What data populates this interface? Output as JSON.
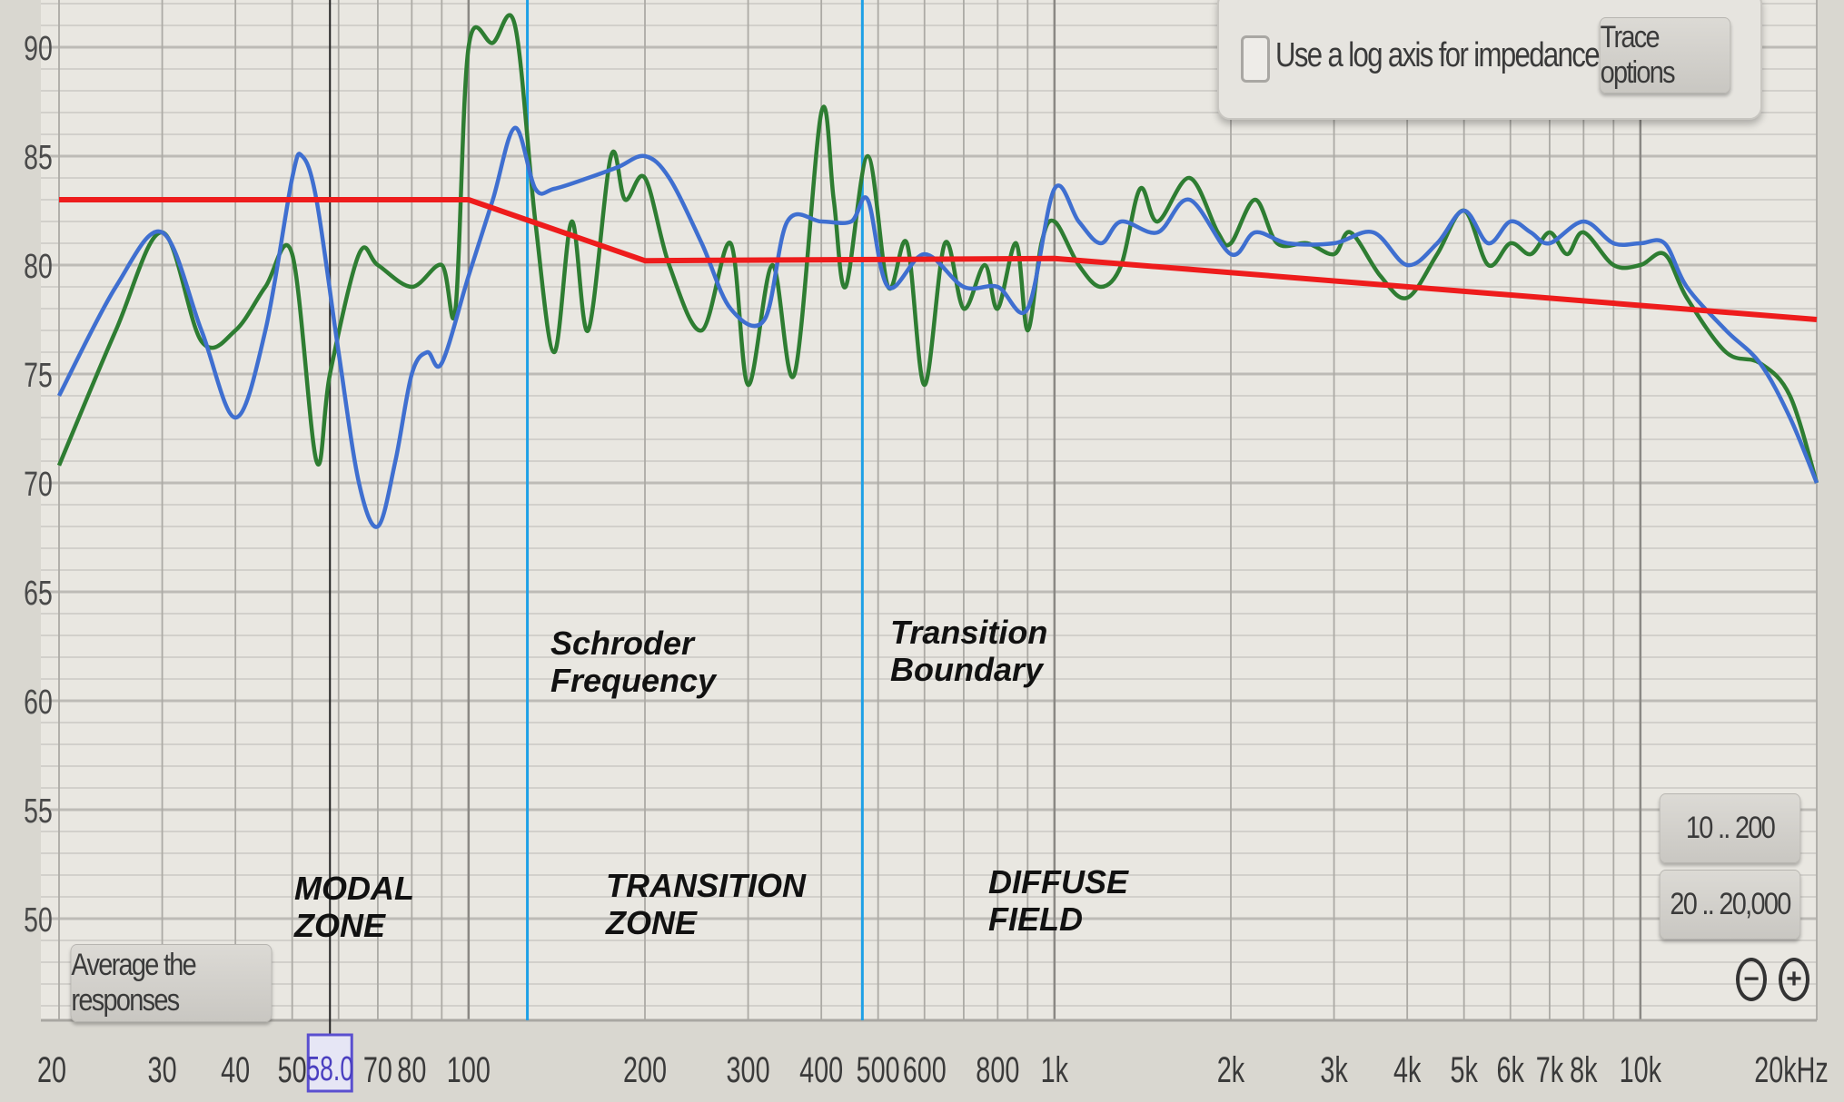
{
  "chart_data": {
    "type": "line",
    "x_scale": "log",
    "xlim": [
      20,
      20000
    ],
    "ylim": [
      45.5,
      92
    ],
    "grid": true,
    "y_ticks": [
      50,
      55,
      60,
      65,
      70,
      75,
      80,
      85,
      90
    ],
    "x_ticks": [
      {
        "v": 20,
        "label": "20"
      },
      {
        "v": 30,
        "label": "30"
      },
      {
        "v": 40,
        "label": "40"
      },
      {
        "v": 50,
        "label": "50"
      },
      {
        "v": 70,
        "label": "70"
      },
      {
        "v": 80,
        "label": "80"
      },
      {
        "v": 100,
        "label": "100"
      },
      {
        "v": 200,
        "label": "200"
      },
      {
        "v": 300,
        "label": "300"
      },
      {
        "v": 400,
        "label": "400"
      },
      {
        "v": 500,
        "label": "500"
      },
      {
        "v": 600,
        "label": "600"
      },
      {
        "v": 800,
        "label": "800"
      },
      {
        "v": 1000,
        "label": "1k"
      },
      {
        "v": 2000,
        "label": "2k"
      },
      {
        "v": 3000,
        "label": "3k"
      },
      {
        "v": 4000,
        "label": "4k"
      },
      {
        "v": 5000,
        "label": "5k"
      },
      {
        "v": 6000,
        "label": "6k"
      },
      {
        "v": 7000,
        "label": "7k"
      },
      {
        "v": 8000,
        "label": "8k"
      },
      {
        "v": 10000,
        "label": "10k"
      },
      {
        "v": 20000,
        "label": "20kHz"
      }
    ],
    "cursor": {
      "freq": 58,
      "label": "58.0"
    },
    "markers": [
      {
        "freq": 126,
        "color": "#1ea0e6"
      },
      {
        "freq": 470,
        "color": "#1ea0e6"
      }
    ],
    "series": [
      {
        "color": "#2e7d32",
        "points": [
          [
            20,
            70.8
          ],
          [
            25,
            77
          ],
          [
            30,
            81.5
          ],
          [
            35,
            76.5
          ],
          [
            40,
            77
          ],
          [
            45,
            79
          ],
          [
            50,
            80.5
          ],
          [
            55,
            71
          ],
          [
            58,
            75
          ],
          [
            65,
            80.5
          ],
          [
            70,
            80
          ],
          [
            80,
            79
          ],
          [
            90,
            80
          ],
          [
            95,
            78
          ],
          [
            100,
            90
          ],
          [
            110,
            90.2
          ],
          [
            120,
            91
          ],
          [
            130,
            82
          ],
          [
            140,
            76
          ],
          [
            150,
            82
          ],
          [
            160,
            77
          ],
          [
            175,
            85
          ],
          [
            185,
            83
          ],
          [
            200,
            84
          ],
          [
            220,
            80
          ],
          [
            250,
            77
          ],
          [
            280,
            81
          ],
          [
            300,
            74.5
          ],
          [
            330,
            80
          ],
          [
            360,
            75
          ],
          [
            400,
            87
          ],
          [
            420,
            83
          ],
          [
            440,
            79
          ],
          [
            480,
            85
          ],
          [
            520,
            79
          ],
          [
            560,
            81
          ],
          [
            600,
            74.5
          ],
          [
            650,
            81
          ],
          [
            700,
            78
          ],
          [
            760,
            80
          ],
          [
            800,
            78
          ],
          [
            860,
            81
          ],
          [
            900,
            77
          ],
          [
            950,
            81
          ],
          [
            1000,
            82
          ],
          [
            1100,
            80
          ],
          [
            1200,
            79
          ],
          [
            1300,
            80
          ],
          [
            1400,
            83.5
          ],
          [
            1500,
            82
          ],
          [
            1700,
            84
          ],
          [
            1900,
            81.5
          ],
          [
            2000,
            81
          ],
          [
            2200,
            83
          ],
          [
            2400,
            81
          ],
          [
            2700,
            81
          ],
          [
            3000,
            80.5
          ],
          [
            3200,
            81.5
          ],
          [
            3600,
            79.5
          ],
          [
            4000,
            78.5
          ],
          [
            4500,
            80.5
          ],
          [
            5000,
            82.5
          ],
          [
            5500,
            80
          ],
          [
            6000,
            81
          ],
          [
            6500,
            80.5
          ],
          [
            7000,
            81.5
          ],
          [
            7500,
            80.5
          ],
          [
            8000,
            81.5
          ],
          [
            9000,
            80
          ],
          [
            10000,
            80
          ],
          [
            11000,
            80.5
          ],
          [
            12000,
            78.5
          ],
          [
            14000,
            76
          ],
          [
            16000,
            75.5
          ],
          [
            18000,
            74
          ],
          [
            20000,
            70
          ]
        ]
      },
      {
        "color": "#3f6fd0",
        "points": [
          [
            20,
            74
          ],
          [
            25,
            79
          ],
          [
            30,
            81.5
          ],
          [
            35,
            77
          ],
          [
            40,
            73
          ],
          [
            45,
            77
          ],
          [
            50,
            84
          ],
          [
            52,
            85
          ],
          [
            55,
            83
          ],
          [
            60,
            76
          ],
          [
            65,
            70
          ],
          [
            70,
            68
          ],
          [
            75,
            71
          ],
          [
            80,
            75
          ],
          [
            85,
            76
          ],
          [
            90,
            75.5
          ],
          [
            100,
            79.5
          ],
          [
            110,
            83
          ],
          [
            120,
            86.3
          ],
          [
            130,
            83.5
          ],
          [
            140,
            83.5
          ],
          [
            160,
            84
          ],
          [
            180,
            84.5
          ],
          [
            200,
            85
          ],
          [
            220,
            84
          ],
          [
            250,
            81
          ],
          [
            280,
            78
          ],
          [
            320,
            77.5
          ],
          [
            350,
            82
          ],
          [
            400,
            82
          ],
          [
            450,
            82
          ],
          [
            480,
            83
          ],
          [
            520,
            79
          ],
          [
            600,
            80.5
          ],
          [
            700,
            79
          ],
          [
            800,
            79
          ],
          [
            900,
            78
          ],
          [
            1000,
            83.5
          ],
          [
            1100,
            82
          ],
          [
            1200,
            81
          ],
          [
            1300,
            82
          ],
          [
            1500,
            81.5
          ],
          [
            1700,
            83
          ],
          [
            2000,
            80.5
          ],
          [
            2200,
            81.5
          ],
          [
            2500,
            81
          ],
          [
            3000,
            81
          ],
          [
            3500,
            81.5
          ],
          [
            4000,
            80
          ],
          [
            4500,
            81
          ],
          [
            5000,
            82.5
          ],
          [
            5500,
            81
          ],
          [
            6000,
            82
          ],
          [
            6500,
            81.5
          ],
          [
            7000,
            81
          ],
          [
            8000,
            82
          ],
          [
            9000,
            81
          ],
          [
            10000,
            81
          ],
          [
            11000,
            81
          ],
          [
            12000,
            79
          ],
          [
            14000,
            77
          ],
          [
            16000,
            75.5
          ],
          [
            18000,
            73
          ],
          [
            20000,
            70
          ]
        ]
      },
      {
        "color": "#ee1c1c",
        "straight": true,
        "points": [
          [
            20,
            83
          ],
          [
            100,
            83
          ],
          [
            200,
            80.2
          ],
          [
            1000,
            80.3
          ],
          [
            20000,
            77.5
          ]
        ]
      }
    ]
  },
  "annotations": {
    "schroder": "Schroder\nFrequency",
    "transition_boundary": "Transition\nBoundary",
    "modal_zone": "MODAL\nZONE",
    "transition_zone": "TRANSITION\nZONE",
    "diffuse_field": "DIFFUSE\nFIELD"
  },
  "controls": {
    "log_axis_label": "Use a log axis for impedance",
    "log_axis_checked": false,
    "trace_options": "Trace options",
    "range_1": "10 .. 200",
    "range_2": "20 .. 20,000",
    "average": "Average the responses",
    "zoom_out_icon": "minus-circle",
    "zoom_in_icon": "plus-circle"
  }
}
